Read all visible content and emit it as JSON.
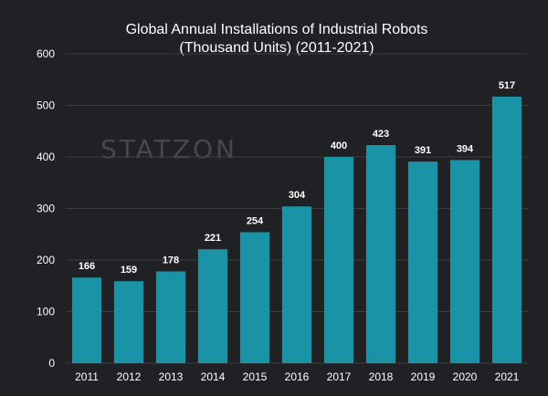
{
  "chart_data": {
    "type": "bar",
    "title": [
      "Global Annual  Installations of Industrial Robots",
      "(Thousand Units) (2011-2021)"
    ],
    "xlabel": "",
    "ylabel": "",
    "ylim": [
      0,
      600
    ],
    "yticks": [
      0,
      100,
      200,
      300,
      400,
      500,
      600
    ],
    "categories": [
      "2011",
      "2012",
      "2013",
      "2014",
      "2015",
      "2016",
      "2017",
      "2018",
      "2019",
      "2020",
      "2021"
    ],
    "values": [
      166,
      159,
      178,
      221,
      254,
      304,
      400,
      423,
      391,
      394,
      517
    ],
    "data_labels": [
      "166",
      "159",
      "178",
      "221",
      "254",
      "304",
      "400",
      "423",
      "391",
      "394",
      "517"
    ],
    "grid": "horizontal",
    "legend": "none",
    "colors": {
      "bar": "#1b93a6",
      "background": "#1f2124",
      "grid": "#3a3d42",
      "text": "#ffffff"
    }
  },
  "watermark": {
    "text": "STATZON"
  }
}
